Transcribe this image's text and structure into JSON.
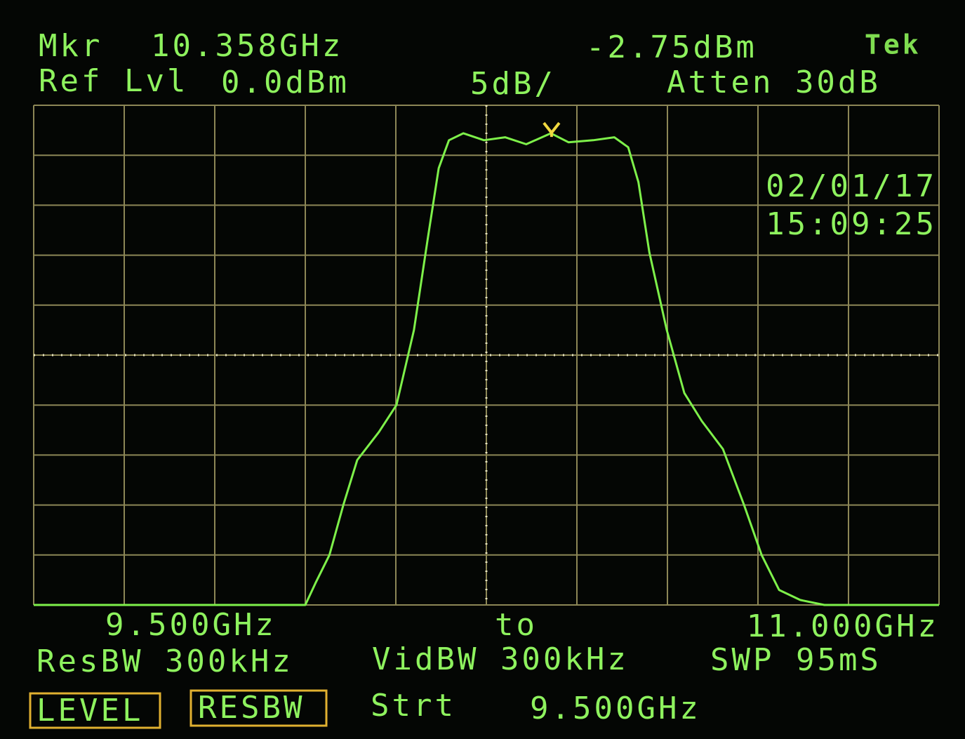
{
  "header": {
    "mkr_label": "Mkr",
    "mkr_freq": "10.358GHz",
    "mkr_level": "-2.75dBm",
    "brand": "Tek",
    "ref_label": "Ref Lvl",
    "ref_level": "0.0dBm",
    "scale": "5dB/",
    "atten": "Atten 30dB"
  },
  "date": "02/01/17",
  "time": "15:09:25",
  "footer": {
    "start": "9.500GHz",
    "to": "to",
    "stop": "11.000GHz",
    "resbw": "ResBW 300kHz",
    "vidbw": "VidBW 300kHz",
    "swp": "SWP 95mS"
  },
  "softkeys": [
    "LEVEL",
    "RESBW"
  ],
  "entry": {
    "label": "Strt",
    "value": "9.500GHz"
  },
  "chart_data": {
    "type": "line",
    "x": [
      9.5,
      9.95,
      9.967,
      9.99,
      10.013,
      10.036,
      10.072,
      10.101,
      10.13,
      10.153,
      10.171,
      10.188,
      10.212,
      10.246,
      10.281,
      10.316,
      10.357,
      10.386,
      10.427,
      10.462,
      10.485,
      10.502,
      10.52,
      10.549,
      10.578,
      10.607,
      10.642,
      10.677,
      10.706,
      10.735,
      10.77,
      10.81,
      11
    ],
    "series": [
      {
        "color": "#7ef04a",
        "values": [
          -50,
          -50,
          -47.8,
          -45,
          -40,
          -35.5,
          -32.7,
          -30,
          -22.5,
          -13.3,
          -6.3,
          -3.5,
          -2.8,
          -3.5,
          -3.2,
          -3.9,
          -2.8,
          -3.7,
          -3.5,
          -3.2,
          -4.2,
          -7.7,
          -14.7,
          -22.5,
          -28.8,
          -31.6,
          -34.4,
          -40,
          -45,
          -48.5,
          -49.5,
          -50,
          -50
        ]
      }
    ],
    "xlim": [
      9.5,
      11
    ],
    "ylim": [
      -50,
      0
    ],
    "marker": {
      "x": 10.358,
      "y": -2.75,
      "color": "#f0d840"
    }
  }
}
